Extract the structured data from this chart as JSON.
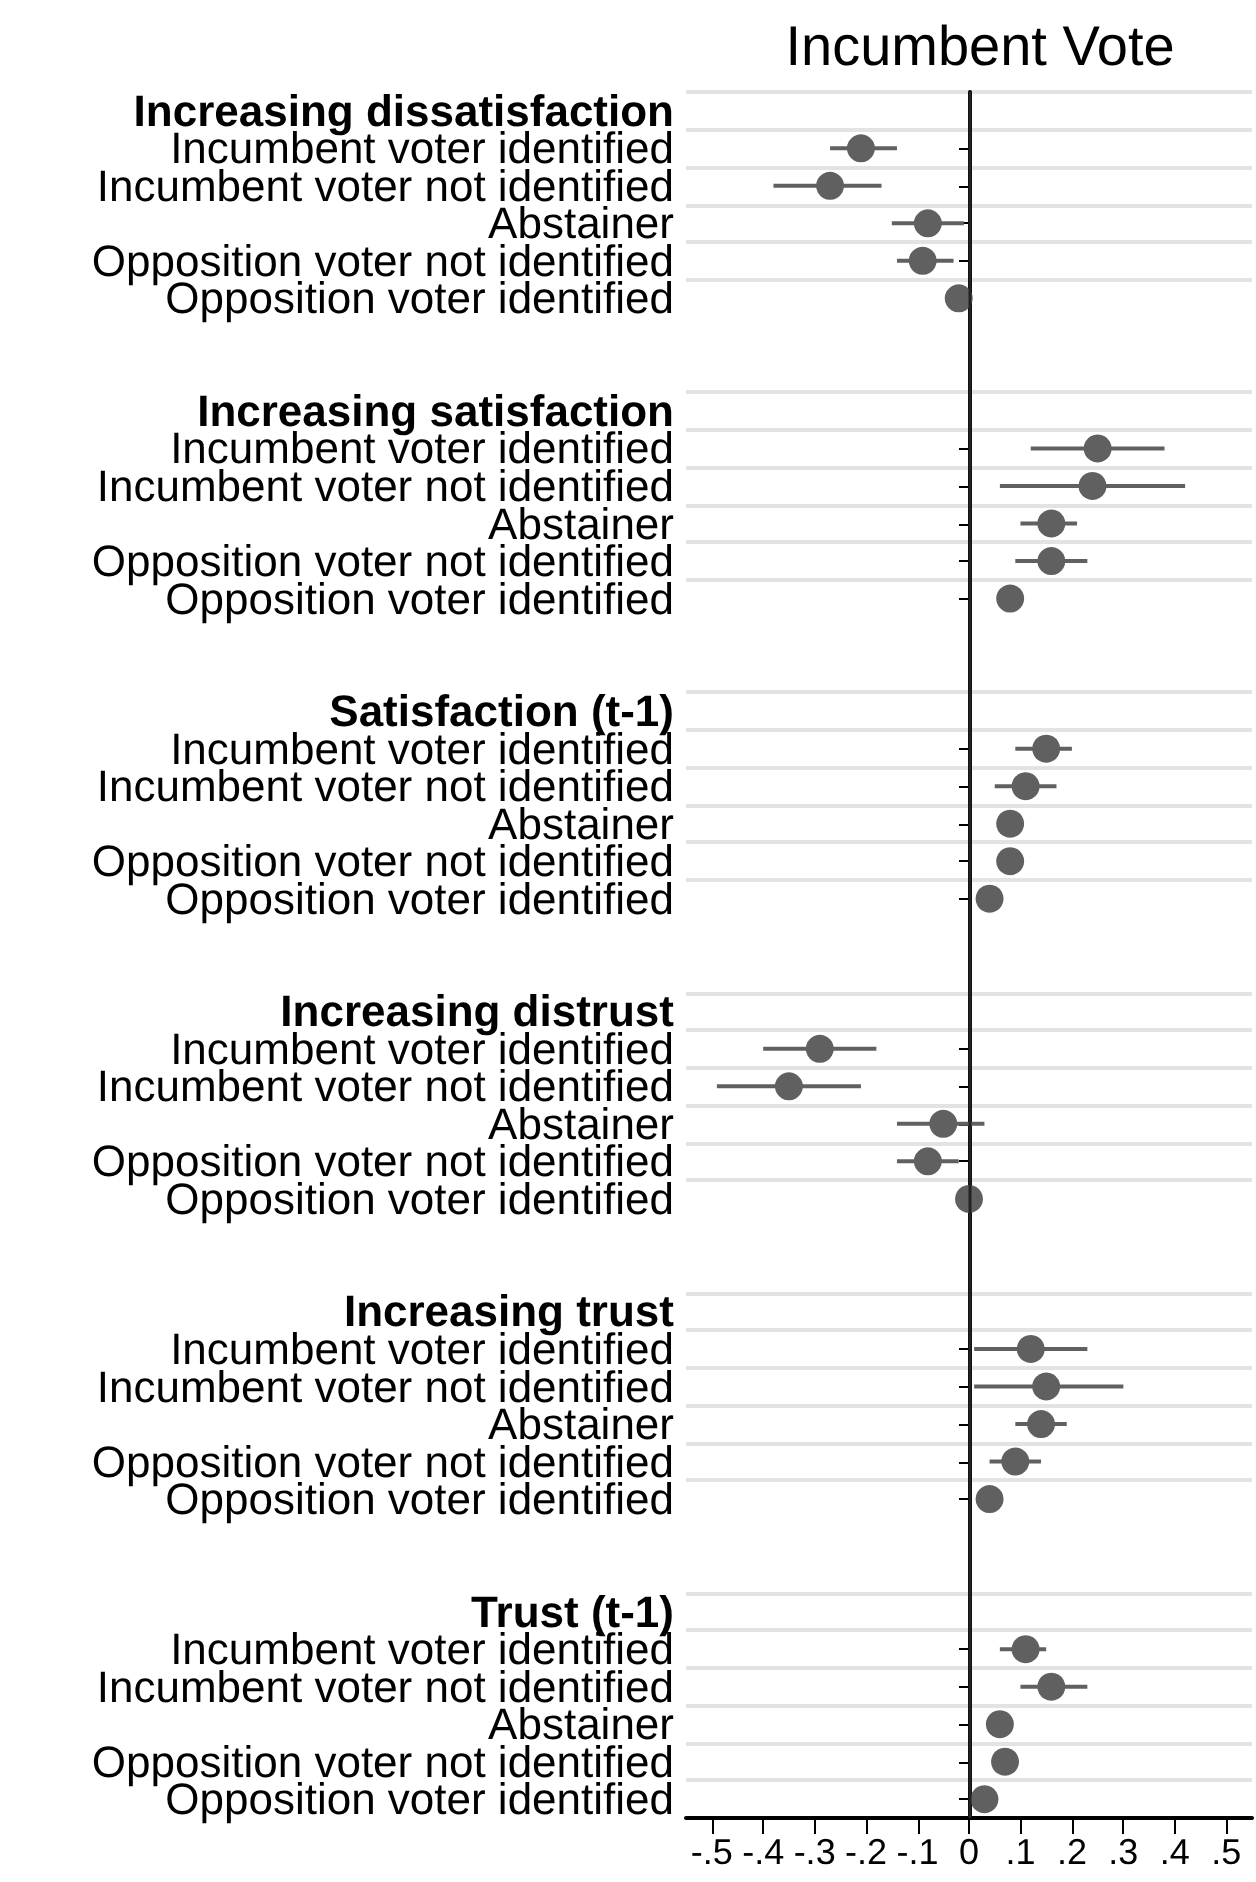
{
  "chart_data": {
    "type": "scatter",
    "title": "Incumbent Vote",
    "orientation": "horizontal",
    "categories": [
      "Increasing dissatisfaction",
      "Incumbent voter identified",
      "Incumbent voter not identified",
      "Abstainer",
      "Opposition voter not identified",
      "Opposition voter identified",
      null,
      null,
      "Increasing satisfaction",
      "Incumbent voter identified",
      "Incumbent voter not identified",
      "Abstainer",
      "Opposition voter not identified",
      "Opposition voter identified",
      null,
      null,
      "Satisfaction (t-1)",
      "Incumbent voter identified",
      "Incumbent voter not identified",
      "Abstainer",
      "Opposition voter not identified",
      "Opposition voter identified",
      null,
      null,
      "Increasing distrust",
      "Incumbent voter identified",
      "Incumbent voter not identified",
      "Abstainer",
      "Opposition voter not identified",
      "Opposition voter identified",
      null,
      null,
      "Increasing trust",
      "Incumbent voter identified",
      "Incumbent voter not identified",
      "Abstainer",
      "Opposition voter not identified",
      "Opposition voter identified",
      null,
      null,
      "Trust (t-1)",
      "Incumbent voter identified",
      "Incumbent voter not identified",
      "Abstainer",
      "Opposition voter not identified",
      "Opposition voter identified"
    ],
    "series": [
      {
        "color": "#606060",
        "values": [
          null,
          -0.21,
          -0.27,
          -0.08,
          -0.09,
          -0.02,
          null,
          null,
          null,
          0.25,
          0.24,
          0.16,
          0.16,
          0.08,
          null,
          null,
          null,
          0.15,
          0.11,
          0.08,
          0.08,
          0.04,
          null,
          null,
          null,
          -0.29,
          -0.35,
          -0.05,
          -0.08,
          0.0,
          null,
          null,
          null,
          0.12,
          0.15,
          0.14,
          0.09,
          0.04,
          null,
          null,
          null,
          0.11,
          0.16,
          0.06,
          0.07,
          0.03
        ],
        "errors": [
          null,
          [
            -0.27,
            -0.14
          ],
          [
            -0.38,
            -0.17
          ],
          [
            -0.15,
            -0.01
          ],
          [
            -0.14,
            -0.03
          ],
          null,
          null,
          null,
          null,
          [
            0.12,
            0.38
          ],
          [
            0.06,
            0.42
          ],
          [
            0.1,
            0.21
          ],
          [
            0.09,
            0.23
          ],
          null,
          null,
          null,
          null,
          [
            0.09,
            0.2
          ],
          [
            0.05,
            0.17
          ],
          null,
          null,
          null,
          null,
          null,
          null,
          [
            -0.4,
            -0.18
          ],
          [
            -0.49,
            -0.21
          ],
          [
            -0.14,
            0.03
          ],
          [
            -0.14,
            -0.02
          ],
          null,
          null,
          null,
          null,
          [
            0.01,
            0.23
          ],
          [
            0.01,
            0.3
          ],
          [
            0.09,
            0.19
          ],
          [
            0.04,
            0.14
          ],
          null,
          null,
          null,
          null,
          [
            0.06,
            0.15
          ],
          [
            0.1,
            0.23
          ],
          null,
          null,
          null
        ]
      }
    ],
    "xlim": [
      -0.55,
      0.55
    ],
    "xticks": [
      {
        "value": -0.5,
        "label": "-.5"
      },
      {
        "value": -0.4,
        "label": "-.4"
      },
      {
        "value": -0.3,
        "label": "-.3"
      },
      {
        "value": -0.2,
        "label": "-.2"
      },
      {
        "value": -0.1,
        "label": "-.1"
      },
      {
        "value": 0,
        "label": "0"
      },
      {
        "value": 0.1,
        "label": ".1"
      },
      {
        "value": 0.2,
        "label": ".2"
      },
      {
        "value": 0.3,
        "label": ".3"
      },
      {
        "value": 0.4,
        "label": ".4"
      },
      {
        "value": 0.5,
        "label": ".5"
      }
    ],
    "ref_lines": [
      {
        "axis": "x",
        "value": 0,
        "label": null,
        "color": "#222222"
      }
    ],
    "grid": "y",
    "marker": "circle"
  }
}
